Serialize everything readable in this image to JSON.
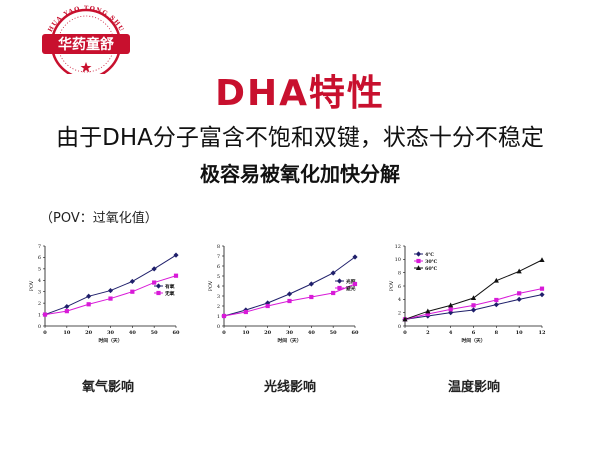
{
  "logo": {
    "text": "华药童舒",
    "ring_text": "HUA YAO TONG SHU",
    "color": "#c8102e"
  },
  "title": "DHA特性",
  "subtitle": "由于DHA分子富含不饱和双键，状态十分不稳定",
  "emphasis": "极容易被氧化加快分解",
  "note": "（POV：过氧化值）",
  "colors": {
    "accent": "#c8102e",
    "series_dark": "#1f1f6b",
    "series_magenta": "#d81ad8",
    "series_black": "#111111"
  },
  "chart_data": [
    {
      "type": "line",
      "caption": "氧气影响",
      "xlabel": "时间（天）",
      "ylabel": "POV",
      "x": [
        0,
        10,
        20,
        30,
        40,
        50,
        60
      ],
      "xticks": [
        0,
        10,
        20,
        30,
        40,
        50,
        60
      ],
      "yticks": [
        0,
        1,
        2,
        3,
        4,
        5,
        6,
        7
      ],
      "xlim": [
        0,
        60
      ],
      "ylim": [
        0,
        7
      ],
      "legend_position": "center-right",
      "series": [
        {
          "name": "有氧",
          "values": [
            1.0,
            1.7,
            2.6,
            3.1,
            3.9,
            5.0,
            6.2
          ],
          "color": "#1f1f6b",
          "marker": "diamond"
        },
        {
          "name": "无氧",
          "values": [
            1.0,
            1.3,
            1.9,
            2.4,
            3.0,
            3.8,
            4.4
          ],
          "color": "#d81ad8",
          "marker": "square"
        }
      ]
    },
    {
      "type": "line",
      "caption": "光线影响",
      "xlabel": "时间（天）",
      "ylabel": "POV",
      "x": [
        0,
        10,
        20,
        30,
        40,
        50,
        60
      ],
      "xticks": [
        0,
        10,
        20,
        30,
        40,
        50,
        60
      ],
      "yticks": [
        0,
        1,
        2,
        3,
        4,
        5,
        6,
        7,
        8
      ],
      "xlim": [
        0,
        60
      ],
      "ylim": [
        0,
        8
      ],
      "legend_position": "center-right",
      "series": [
        {
          "name": "光照",
          "values": [
            1.0,
            1.6,
            2.3,
            3.2,
            4.2,
            5.3,
            6.9
          ],
          "color": "#1f1f6b",
          "marker": "diamond"
        },
        {
          "name": "避光",
          "values": [
            1.0,
            1.4,
            2.0,
            2.5,
            2.9,
            3.3,
            4.2
          ],
          "color": "#d81ad8",
          "marker": "square"
        }
      ]
    },
    {
      "type": "line",
      "caption": "温度影响",
      "xlabel": "时间（天）",
      "ylabel": "POV",
      "x": [
        0,
        2,
        4,
        6,
        8,
        10,
        12
      ],
      "xticks": [
        0,
        2,
        4,
        6,
        8,
        10,
        12
      ],
      "yticks": [
        0,
        2,
        4,
        6,
        8,
        10,
        12
      ],
      "xlim": [
        0,
        12
      ],
      "ylim": [
        0,
        12
      ],
      "legend_position": "top-left",
      "series": [
        {
          "name": "4℃",
          "values": [
            1.0,
            1.5,
            2.0,
            2.4,
            3.2,
            4.0,
            4.7
          ],
          "color": "#1f1f6b",
          "marker": "diamond"
        },
        {
          "name": "30℃",
          "values": [
            1.0,
            1.8,
            2.5,
            3.1,
            3.9,
            4.9,
            5.6
          ],
          "color": "#d81ad8",
          "marker": "square"
        },
        {
          "name": "60℃",
          "values": [
            1.0,
            2.2,
            3.1,
            4.2,
            6.8,
            8.2,
            9.9
          ],
          "color": "#111111",
          "marker": "triangle"
        }
      ]
    }
  ]
}
